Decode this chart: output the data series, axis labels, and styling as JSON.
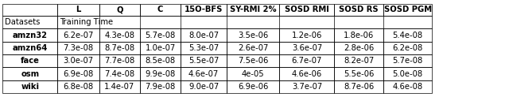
{
  "col_headers": [
    "L",
    "Q",
    "C",
    "15O-BFS",
    "SY-RMI 2%",
    "SOSD RMI",
    "SOSD RS",
    "SOSD PGM"
  ],
  "row_headers": [
    "Datasets",
    "amzn32",
    "amzn64",
    "face",
    "osm",
    "wiki"
  ],
  "subheader": "Training Time",
  "rows": [
    [
      "6.2e-07",
      "4.3e-08",
      "5.7e-08",
      "8.0e-07",
      "3.5e-06",
      "1.2e-06",
      "1.8e-06",
      "5.4e-08"
    ],
    [
      "7.3e-08",
      "8.7e-08",
      "1.0e-07",
      "5.3e-07",
      "2.6e-07",
      "3.6e-07",
      "2.8e-06",
      "6.2e-08"
    ],
    [
      "3.0e-07",
      "7.7e-08",
      "8.5e-08",
      "5.5e-07",
      "7.5e-06",
      "6.7e-07",
      "8.2e-07",
      "5.7e-08"
    ],
    [
      "6.9e-08",
      "7.4e-08",
      "9.9e-08",
      "4.6e-07",
      "4e-05",
      "4.6e-06",
      "5.5e-06",
      "5.0e-08"
    ],
    [
      "6.8e-08",
      "1.4e-07",
      "7.9e-08",
      "9.0e-07",
      "6.9e-06",
      "3.7e-07",
      "8.7e-06",
      "4.6e-08"
    ]
  ],
  "fig_width": 6.4,
  "fig_height": 1.23,
  "dpi": 100,
  "font_size": 7.2,
  "background_color": "#ffffff"
}
